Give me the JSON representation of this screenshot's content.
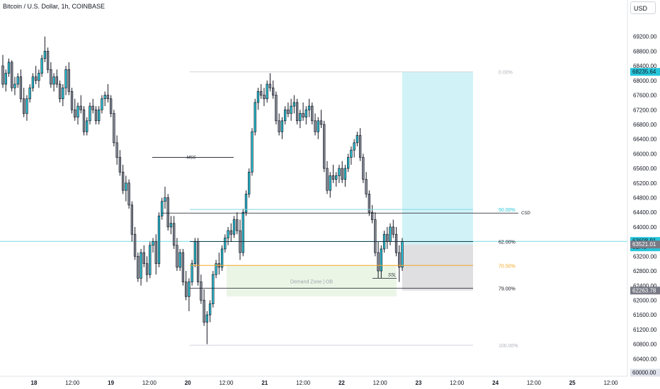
{
  "header": {
    "title": "Bitcoin / U.S. Dollar, 1h, COINBASE",
    "currency": "USD"
  },
  "chart_data": {
    "type": "candlestick",
    "title": "Bitcoin / U.S. Dollar, 1h, COINBASE",
    "ylim": [
      60000,
      69600
    ],
    "y_ticks": [
      69200,
      68800,
      68400,
      68000,
      67600,
      67200,
      66800,
      66400,
      66000,
      65600,
      65200,
      64800,
      64400,
      64000,
      63600,
      63200,
      62800,
      62400,
      62000,
      61600,
      61200,
      60800,
      60400,
      60000
    ],
    "y_tick_labels": [
      "69200.00",
      "68800.00",
      "68400.00",
      "68000.00",
      "67600.00",
      "67200.00",
      "66800.00",
      "66400.00",
      "66000.00",
      "65600.00",
      "65200.00",
      "64800.00",
      "64400.00",
      "64000.00",
      "63600.00",
      "63200.00",
      "62800.00",
      "62400.00",
      "62000.00",
      "61600.00",
      "61200.00",
      "60800.00",
      "60400.00",
      "60000.00"
    ],
    "x_tick_labels": [
      "18",
      "12:00",
      "19",
      "12:00",
      "20",
      "12:00",
      "21",
      "12:00",
      "22",
      "12:00",
      "23",
      "12:00",
      "24",
      "12:00",
      "25",
      "12:00"
    ],
    "price_labels": {
      "last": "63608.91",
      "countdown": "01:40",
      "target": "68235.64",
      "entry": "63521.01",
      "stop": "62263.78",
      "bottom": "60000.00"
    },
    "fib_levels": [
      {
        "label": "0.00%",
        "price": 68235.64
      },
      {
        "label": "50.00%",
        "price": 64480
      },
      {
        "label": "62.00%",
        "price": 63600
      },
      {
        "label": "70.50%",
        "price": 62950
      },
      {
        "label": "79.00%",
        "price": 62330
      },
      {
        "label": "100.00%",
        "price": 60770
      }
    ],
    "annotations": {
      "mss": "MSS",
      "csd": "CSD",
      "ssl": "SSL",
      "zone": "Demand Zone | OB"
    },
    "levels": {
      "mss_price": 65900,
      "csd_price": 64380,
      "ssl_price": 62600,
      "zone_top": 62950,
      "zone_bottom": 62100
    },
    "position": {
      "target": 68235.64,
      "entry": 63521.01,
      "stop": 62263.78
    },
    "candles": [
      [
        68400,
        68700,
        67800,
        67900
      ],
      [
        67900,
        68300,
        67700,
        68200
      ],
      [
        68200,
        68600,
        68100,
        68500
      ],
      [
        68500,
        68550,
        67700,
        67800
      ],
      [
        67800,
        68100,
        67600,
        67900
      ],
      [
        67900,
        68200,
        67800,
        68100
      ],
      [
        68100,
        68300,
        67400,
        67500
      ],
      [
        67500,
        67800,
        67000,
        67100
      ],
      [
        67100,
        67600,
        66900,
        67500
      ],
      [
        67500,
        67900,
        67400,
        67800
      ],
      [
        67800,
        68200,
        67700,
        68100
      ],
      [
        68100,
        68400,
        67900,
        68000
      ],
      [
        68000,
        68300,
        67800,
        68200
      ],
      [
        68200,
        68700,
        68100,
        68600
      ],
      [
        68600,
        69200,
        68500,
        68800
      ],
      [
        68800,
        68900,
        68200,
        68300
      ],
      [
        68300,
        68500,
        67800,
        67900
      ],
      [
        67900,
        68200,
        67700,
        68100
      ],
      [
        68100,
        68300,
        67800,
        67900
      ],
      [
        67900,
        68000,
        67400,
        67500
      ],
      [
        67500,
        67900,
        67300,
        67800
      ],
      [
        67800,
        68400,
        67600,
        68300
      ],
      [
        68300,
        68500,
        67600,
        67700
      ],
      [
        67700,
        67800,
        67100,
        67200
      ],
      [
        67200,
        67500,
        66900,
        67000
      ],
      [
        67000,
        67400,
        66800,
        67300
      ],
      [
        67300,
        67600,
        67100,
        67200
      ],
      [
        67200,
        67300,
        66500,
        66600
      ],
      [
        66600,
        67000,
        66500,
        66900
      ],
      [
        66900,
        67400,
        66800,
        67300
      ],
      [
        67300,
        67500,
        67100,
        67200
      ],
      [
        67200,
        67300,
        66800,
        66900
      ],
      [
        66900,
        67300,
        66800,
        67200
      ],
      [
        67200,
        67600,
        67100,
        67500
      ],
      [
        67500,
        67700,
        67300,
        67600
      ],
      [
        67600,
        67900,
        67400,
        67500
      ],
      [
        67500,
        67600,
        67000,
        67100
      ],
      [
        67100,
        67200,
        66200,
        66300
      ],
      [
        66300,
        66500,
        65700,
        65900
      ],
      [
        65900,
        66100,
        65400,
        65500
      ],
      [
        65500,
        65700,
        64900,
        65000
      ],
      [
        65000,
        65400,
        64700,
        65200
      ],
      [
        65200,
        65300,
        64500,
        64600
      ],
      [
        64600,
        64700,
        63600,
        63800
      ],
      [
        63800,
        64000,
        63100,
        63200
      ],
      [
        63200,
        63300,
        62500,
        62600
      ],
      [
        62600,
        63400,
        62400,
        63300
      ],
      [
        63300,
        63500,
        62900,
        63000
      ],
      [
        63000,
        63200,
        62500,
        62700
      ],
      [
        62700,
        63600,
        62600,
        63500
      ],
      [
        63500,
        63700,
        63300,
        63600
      ],
      [
        63600,
        63800,
        62700,
        63000
      ],
      [
        63000,
        64400,
        62900,
        64300
      ],
      [
        64300,
        64800,
        64200,
        64700
      ],
      [
        64700,
        65100,
        64500,
        64800
      ],
      [
        64800,
        64900,
        63900,
        64000
      ],
      [
        64000,
        64300,
        63800,
        64100
      ],
      [
        64100,
        64300,
        63400,
        63500
      ],
      [
        63500,
        63700,
        62800,
        62900
      ],
      [
        62900,
        63400,
        62800,
        63300
      ],
      [
        63300,
        63400,
        62400,
        62500
      ],
      [
        62500,
        62800,
        62000,
        62100
      ],
      [
        62100,
        62600,
        61700,
        62500
      ],
      [
        62500,
        63100,
        62400,
        63000
      ],
      [
        63000,
        63700,
        62900,
        63600
      ],
      [
        63600,
        63700,
        62400,
        62500
      ],
      [
        62500,
        62700,
        61900,
        62000
      ],
      [
        62000,
        62300,
        61300,
        61400
      ],
      [
        61400,
        61700,
        60800,
        61600
      ],
      [
        61600,
        62000,
        61400,
        61900
      ],
      [
        61900,
        62800,
        61800,
        62700
      ],
      [
        62700,
        63100,
        62600,
        63000
      ],
      [
        63000,
        63300,
        62700,
        62900
      ],
      [
        62900,
        63500,
        62800,
        63400
      ],
      [
        63400,
        63800,
        63300,
        63700
      ],
      [
        63700,
        64000,
        63500,
        63900
      ],
      [
        63900,
        64100,
        63600,
        63800
      ],
      [
        63800,
        64300,
        63700,
        64200
      ],
      [
        64200,
        64400,
        63800,
        63900
      ],
      [
        63900,
        64200,
        63100,
        63300
      ],
      [
        63300,
        64500,
        63200,
        64400
      ],
      [
        64400,
        65000,
        64300,
        64900
      ],
      [
        64900,
        65600,
        64800,
        65500
      ],
      [
        65500,
        66700,
        65400,
        66600
      ],
      [
        66600,
        67500,
        66500,
        67400
      ],
      [
        67400,
        67800,
        67200,
        67700
      ],
      [
        67700,
        67900,
        67500,
        67600
      ],
      [
        67600,
        67800,
        67300,
        67500
      ],
      [
        67500,
        68000,
        67400,
        67900
      ],
      [
        67900,
        68200,
        67700,
        67800
      ],
      [
        67800,
        68000,
        67500,
        67600
      ],
      [
        67600,
        67700,
        66800,
        66900
      ],
      [
        66900,
        67100,
        66500,
        66600
      ],
      [
        66600,
        67000,
        66400,
        66900
      ],
      [
        66900,
        67300,
        66800,
        67200
      ],
      [
        67200,
        67400,
        67000,
        67100
      ],
      [
        67100,
        67500,
        66900,
        67300
      ],
      [
        67300,
        67600,
        67100,
        67400
      ],
      [
        67400,
        67500,
        66800,
        66900
      ],
      [
        66900,
        67200,
        66700,
        67100
      ],
      [
        67100,
        67400,
        66900,
        67000
      ],
      [
        67000,
        67300,
        66800,
        67200
      ],
      [
        67200,
        67500,
        67000,
        67300
      ],
      [
        67300,
        67400,
        66800,
        66900
      ],
      [
        66900,
        67100,
        66500,
        66600
      ],
      [
        66600,
        67000,
        66400,
        66900
      ],
      [
        66900,
        67200,
        66700,
        66800
      ],
      [
        66800,
        66900,
        65500,
        65600
      ],
      [
        65600,
        65800,
        64900,
        65000
      ],
      [
        65000,
        65500,
        64800,
        65400
      ],
      [
        65400,
        65700,
        65200,
        65300
      ],
      [
        65300,
        65500,
        65100,
        65400
      ],
      [
        65400,
        65700,
        65200,
        65600
      ],
      [
        65600,
        65800,
        65200,
        65300
      ],
      [
        65300,
        65700,
        65100,
        65600
      ],
      [
        65600,
        66000,
        65500,
        65900
      ],
      [
        65900,
        66200,
        65700,
        66100
      ],
      [
        66100,
        66400,
        65900,
        66300
      ],
      [
        66300,
        66600,
        66200,
        66500
      ],
      [
        66500,
        66700,
        65800,
        65900
      ],
      [
        65900,
        66000,
        65200,
        65300
      ],
      [
        65300,
        65500,
        64800,
        64900
      ],
      [
        64900,
        65000,
        64300,
        64400
      ],
      [
        64400,
        64600,
        64100,
        64200
      ],
      [
        64200,
        64400,
        63200,
        63300
      ],
      [
        63300,
        63600,
        62600,
        62800
      ],
      [
        62800,
        63500,
        62600,
        63400
      ],
      [
        63400,
        63900,
        63300,
        63800
      ],
      [
        63800,
        64000,
        63400,
        63600
      ],
      [
        63600,
        64100,
        63500,
        64000
      ],
      [
        64000,
        64200,
        63700,
        63800
      ],
      [
        63800,
        64000,
        63200,
        63300
      ],
      [
        63300,
        63500,
        62500,
        62900
      ],
      [
        62900,
        63700,
        62800,
        63600
      ]
    ]
  }
}
